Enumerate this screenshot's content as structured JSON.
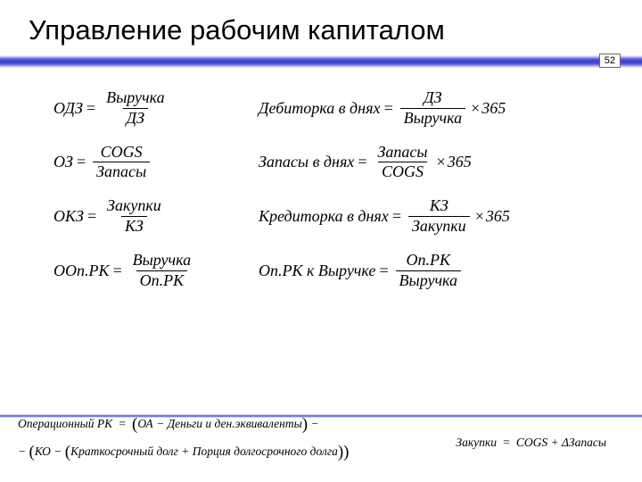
{
  "title": "Управление рабочим капиталом",
  "page_number": "52",
  "formulas": {
    "r1_left": {
      "lhs": "ОДЗ",
      "num": "Выручка",
      "den": "ДЗ"
    },
    "r1_right": {
      "lhs": "Дебиторка  в  днях",
      "num": "ДЗ",
      "den": "Выручка",
      "mult": "365"
    },
    "r2_left": {
      "lhs": "ОЗ",
      "num": "COGS",
      "den": "Запасы"
    },
    "r2_right": {
      "lhs": "Запасы  в  днях",
      "num": "Запасы",
      "den": "COGS",
      "mult": "365"
    },
    "r3_left": {
      "lhs": "ОКЗ",
      "num": "Закупки",
      "den": "КЗ"
    },
    "r3_right": {
      "lhs": "Кредиторка  в  днях",
      "num": "КЗ",
      "den": "Закупки",
      "mult": "365"
    },
    "r4_left": {
      "lhs": "ООп.РК",
      "num": "Выручка",
      "den": "Оп.РК"
    },
    "r4_right": {
      "lhs": "Оп.РК  к  Выручке",
      "num": "Оп.РК",
      "den": "Выручка"
    }
  },
  "footer": {
    "line1_a": "Операционный  РК",
    "line1_b": "ОА",
    "line1_c": "Деньги  и  ден.эквиваленты",
    "line2_a": "КО",
    "line2_b": "Краткосрочный  долг",
    "line2_c": "Порция  долгосрочного  долга",
    "right_a": "Закупки",
    "right_b": "COGS",
    "right_c": "Запасы"
  }
}
